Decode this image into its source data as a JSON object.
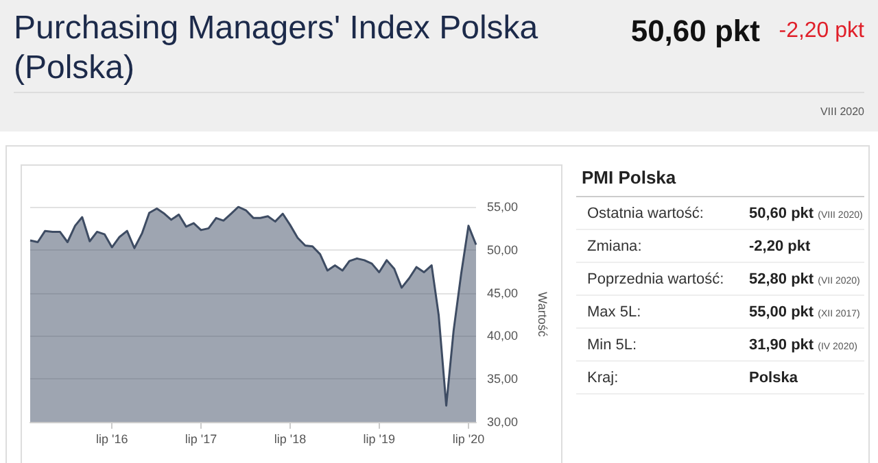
{
  "chart_data": [
    {
      "type": "area",
      "title": "Purchasing Managers' Index Polska (Polska)",
      "annotations": [
        "50,60 pkt",
        "-2,20 pkt",
        "VIII 2020"
      ],
      "ylabel": "Wartość",
      "x": [
        "2015-08",
        "2015-09",
        "2015-10",
        "2015-11",
        "2015-12",
        "2016-01",
        "2016-02",
        "2016-03",
        "2016-04",
        "2016-05",
        "2016-06",
        "2016-07",
        "2016-08",
        "2016-09",
        "2016-10",
        "2016-11",
        "2016-12",
        "2017-01",
        "2017-02",
        "2017-03",
        "2017-04",
        "2017-05",
        "2017-06",
        "2017-07",
        "2017-08",
        "2017-09",
        "2017-10",
        "2017-11",
        "2017-12",
        "2018-01",
        "2018-02",
        "2018-03",
        "2018-04",
        "2018-05",
        "2018-06",
        "2018-07",
        "2018-08",
        "2018-09",
        "2018-10",
        "2018-11",
        "2018-12",
        "2019-01",
        "2019-02",
        "2019-03",
        "2019-04",
        "2019-05",
        "2019-06",
        "2019-07",
        "2019-08",
        "2019-09",
        "2019-10",
        "2019-11",
        "2019-12",
        "2020-01",
        "2020-02",
        "2020-03",
        "2020-04",
        "2020-05",
        "2020-06",
        "2020-07",
        "2020-08"
      ],
      "series": [
        {
          "color": "#3e4c63",
          "values": [
            51.1,
            50.9,
            52.2,
            52.1,
            52.1,
            50.9,
            52.8,
            53.8,
            51.0,
            52.1,
            51.8,
            50.3,
            51.5,
            52.2,
            50.2,
            51.9,
            54.3,
            54.8,
            54.2,
            53.5,
            54.1,
            52.7,
            53.1,
            52.3,
            52.5,
            53.7,
            53.4,
            54.2,
            55.0,
            54.6,
            53.7,
            53.7,
            53.9,
            53.3,
            54.2,
            52.9,
            51.4,
            50.5,
            50.4,
            49.5,
            47.6,
            48.2,
            47.6,
            48.7,
            49.0,
            48.8,
            48.4,
            47.4,
            48.8,
            47.8,
            45.6,
            46.7,
            48.0,
            47.4,
            48.2,
            42.4,
            31.9,
            40.6,
            47.2,
            52.8,
            50.6
          ]
        }
      ],
      "xlim": [
        "2015-08",
        "2020-08"
      ],
      "xticks": [
        {
          "value": "2016-07",
          "label": "lip '16"
        },
        {
          "value": "2017-07",
          "label": "lip '17"
        },
        {
          "value": "2018-07",
          "label": "lip '18"
        },
        {
          "value": "2019-07",
          "label": "lip '19"
        },
        {
          "value": "2020-07",
          "label": "lip '20"
        }
      ],
      "ylim": [
        30,
        55
      ],
      "yticks": [
        {
          "value": 30,
          "label": "30,00"
        },
        {
          "value": 35,
          "label": "35,00"
        },
        {
          "value": 40,
          "label": "40,00"
        },
        {
          "value": 45,
          "label": "45,00"
        },
        {
          "value": 50,
          "label": "50,00"
        },
        {
          "value": 55,
          "label": "55,00"
        }
      ],
      "grid": "y",
      "marker": "none"
    },
    {
      "type": "other",
      "title": "PMI Polska",
      "annotations": [
        ":"
      ],
      "categories": [
        "Ostatnia wartość",
        "Zmiana",
        "Poprzednia wartość",
        "Max 5L",
        "Min 5L",
        "Kraj"
      ],
      "value_labels": [
        "50,60 pkt (VIII 2020)",
        "-2,20 pkt",
        "52,80 pkt (VII 2020)",
        "55,00 pkt (XII 2017)",
        "31,90 pkt (IV 2020)",
        "Polska"
      ]
    }
  ]
}
